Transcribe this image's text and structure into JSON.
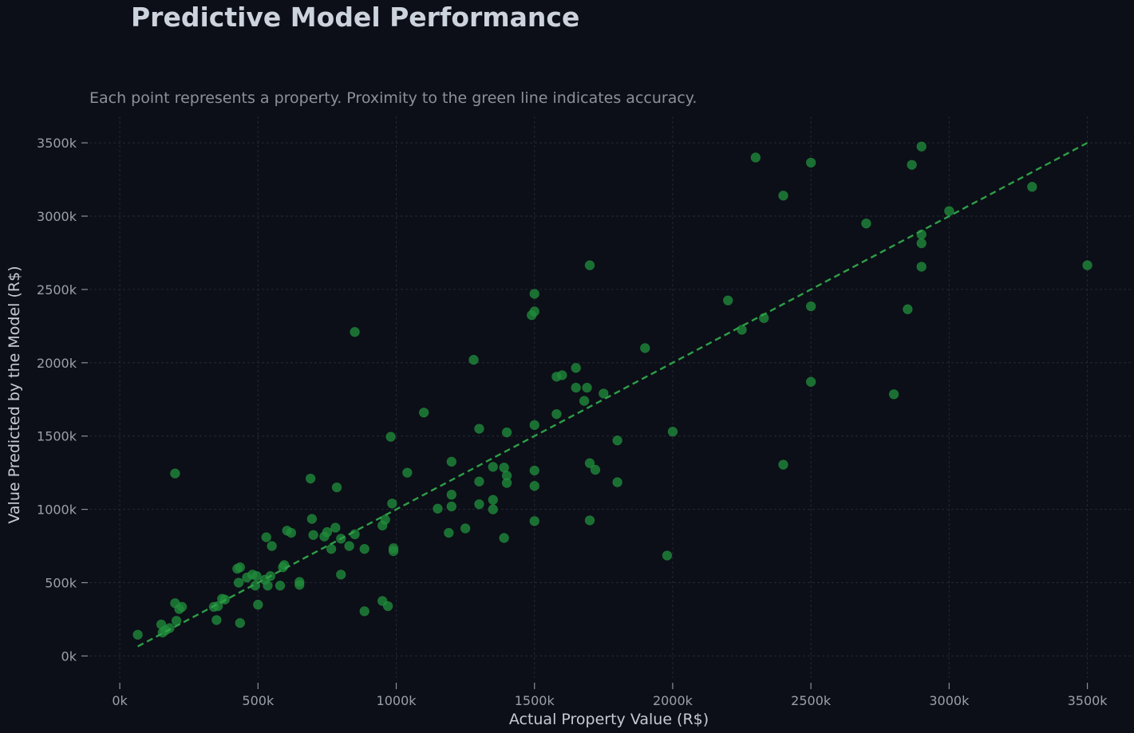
{
  "chart_data": {
    "type": "scatter",
    "title": "Predictive Model Performance",
    "subtitle": "Each point represents a property. Proximity to the green line indicates accuracy.",
    "xlabel": "Actual Property Value (R$)",
    "ylabel": "Value Predicted by the Model (R$)",
    "xlim": [
      -110,
      3660
    ],
    "ylim": [
      -150,
      3680
    ],
    "xticks": [
      0,
      500,
      1000,
      1500,
      2000,
      2500,
      3000,
      3500
    ],
    "xtick_labels": [
      "0k",
      "500k",
      "1000k",
      "1500k",
      "2000k",
      "2500k",
      "3000k",
      "3500k"
    ],
    "yticks": [
      0,
      500,
      1000,
      1500,
      2000,
      2500,
      3000,
      3500
    ],
    "ytick_labels": [
      "0k",
      "500k",
      "1000k",
      "1500k",
      "2000k",
      "2500k",
      "3000k",
      "3500k"
    ],
    "grid": true,
    "reference_line": {
      "x": [
        65,
        3500
      ],
      "y": [
        65,
        3500
      ],
      "style": "dashed"
    },
    "colors": {
      "background": "#0c0f17",
      "point": "#1f8a3a",
      "line": "#2e9e48",
      "grid": "#232834"
    },
    "points": [
      [
        65,
        145
      ],
      [
        150,
        215
      ],
      [
        155,
        160
      ],
      [
        165,
        175
      ],
      [
        180,
        190
      ],
      [
        200,
        360
      ],
      [
        205,
        240
      ],
      [
        215,
        320
      ],
      [
        225,
        335
      ],
      [
        200,
        1245
      ],
      [
        340,
        335
      ],
      [
        350,
        245
      ],
      [
        355,
        340
      ],
      [
        370,
        390
      ],
      [
        380,
        385
      ],
      [
        425,
        595
      ],
      [
        430,
        500
      ],
      [
        435,
        605
      ],
      [
        435,
        225
      ],
      [
        460,
        535
      ],
      [
        480,
        555
      ],
      [
        490,
        480
      ],
      [
        495,
        545
      ],
      [
        500,
        350
      ],
      [
        525,
        520
      ],
      [
        530,
        810
      ],
      [
        535,
        480
      ],
      [
        545,
        545
      ],
      [
        550,
        750
      ],
      [
        580,
        480
      ],
      [
        590,
        605
      ],
      [
        595,
        620
      ],
      [
        605,
        855
      ],
      [
        620,
        840
      ],
      [
        650,
        505
      ],
      [
        650,
        485
      ],
      [
        690,
        1210
      ],
      [
        695,
        935
      ],
      [
        700,
        825
      ],
      [
        740,
        815
      ],
      [
        750,
        845
      ],
      [
        765,
        730
      ],
      [
        780,
        875
      ],
      [
        785,
        1150
      ],
      [
        800,
        800
      ],
      [
        800,
        555
      ],
      [
        830,
        750
      ],
      [
        850,
        830
      ],
      [
        850,
        2210
      ],
      [
        885,
        730
      ],
      [
        885,
        305
      ],
      [
        950,
        890
      ],
      [
        950,
        375
      ],
      [
        960,
        930
      ],
      [
        970,
        340
      ],
      [
        980,
        1495
      ],
      [
        985,
        1040
      ],
      [
        990,
        735
      ],
      [
        990,
        715
      ],
      [
        1040,
        1250
      ],
      [
        1100,
        1660
      ],
      [
        1150,
        1005
      ],
      [
        1190,
        840
      ],
      [
        1200,
        1325
      ],
      [
        1200,
        1100
      ],
      [
        1200,
        1020
      ],
      [
        1250,
        870
      ],
      [
        1280,
        2020
      ],
      [
        1300,
        1550
      ],
      [
        1300,
        1190
      ],
      [
        1300,
        1035
      ],
      [
        1350,
        1290
      ],
      [
        1350,
        1065
      ],
      [
        1350,
        1000
      ],
      [
        1390,
        1285
      ],
      [
        1390,
        805
      ],
      [
        1400,
        1525
      ],
      [
        1400,
        1230
      ],
      [
        1400,
        1180
      ],
      [
        1490,
        2325
      ],
      [
        1500,
        2470
      ],
      [
        1500,
        2350
      ],
      [
        1500,
        1575
      ],
      [
        1500,
        1265
      ],
      [
        1500,
        1160
      ],
      [
        1500,
        920
      ],
      [
        1580,
        1905
      ],
      [
        1580,
        1650
      ],
      [
        1600,
        1915
      ],
      [
        1650,
        1965
      ],
      [
        1650,
        1830
      ],
      [
        1680,
        1740
      ],
      [
        1690,
        1830
      ],
      [
        1700,
        2665
      ],
      [
        1700,
        1315
      ],
      [
        1700,
        925
      ],
      [
        1720,
        1270
      ],
      [
        1750,
        1790
      ],
      [
        1800,
        1470
      ],
      [
        1800,
        1185
      ],
      [
        1900,
        2100
      ],
      [
        1980,
        685
      ],
      [
        2000,
        1530
      ],
      [
        2200,
        2425
      ],
      [
        2250,
        2225
      ],
      [
        2300,
        3400
      ],
      [
        2330,
        2305
      ],
      [
        2400,
        3140
      ],
      [
        2400,
        1305
      ],
      [
        2500,
        3365
      ],
      [
        2500,
        2385
      ],
      [
        2500,
        1870
      ],
      [
        2700,
        2950
      ],
      [
        2800,
        1785
      ],
      [
        2850,
        2365
      ],
      [
        2865,
        3350
      ],
      [
        2900,
        3475
      ],
      [
        2900,
        2875
      ],
      [
        2900,
        2815
      ],
      [
        2900,
        2655
      ],
      [
        3000,
        3035
      ],
      [
        3300,
        3200
      ],
      [
        3500,
        2665
      ]
    ]
  }
}
